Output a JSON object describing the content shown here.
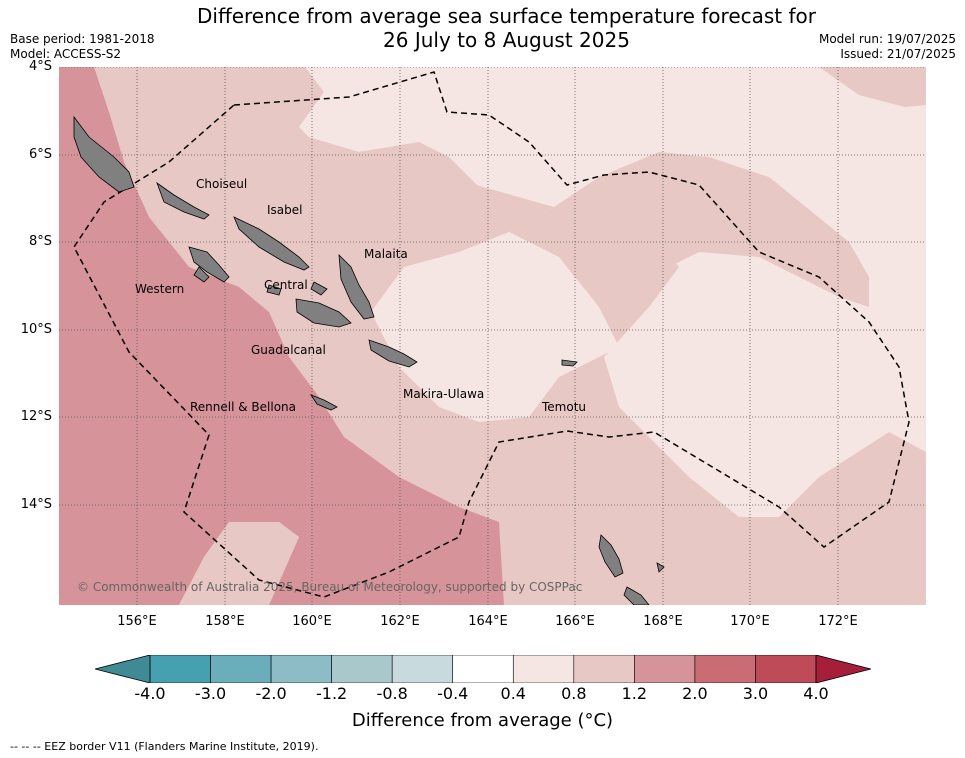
{
  "title_line1": "Difference from average sea surface temperature forecast for",
  "title_line2": "26 July to 8 August 2025",
  "meta_left": [
    "Base period: 1981-2018",
    "Model: ACCESS-S2"
  ],
  "meta_right": [
    "Model run: 19/07/2025",
    "Issued: 21/07/2025"
  ],
  "y_ticks": [
    "4°S",
    "6°S",
    "8°S",
    "10°S",
    "12°S",
    "14°S"
  ],
  "x_ticks": [
    "156°E",
    "158°E",
    "160°E",
    "162°E",
    "164°E",
    "166°E",
    "168°E",
    "170°E",
    "172°E"
  ],
  "places": [
    "Choiseul",
    "Isabel",
    "Malaita",
    "Western",
    "Central",
    "Guadalcanal",
    "Makira-Ulawa",
    "Rennell & Bellona",
    "Temotu"
  ],
  "copyright": "© Commonwealth of Australia 2025, Bureau of Meteorology, supported by COSPPac",
  "colorbar": {
    "labels": [
      "-4.0",
      "-3.0",
      "-2.0",
      "-1.2",
      "-0.8",
      "-0.4",
      "0.4",
      "0.8",
      "1.2",
      "2.0",
      "3.0",
      "4.0"
    ],
    "colors": [
      "#45a0b0",
      "#6aaebc",
      "#8cbcc5",
      "#a9c8cc",
      "#c8dadd",
      "#ffffff",
      "#f5e6e4",
      "#e8c8c4",
      "#d7939a",
      "#c96c74",
      "#be4b58"
    ],
    "under_color": "#3f8a95",
    "over_color": "#a51e3a",
    "title": "Difference from average (°C)"
  },
  "legend_footer": "--  --  -- EEZ border V11 (Flanders Marine Institute, 2019).",
  "colors": {
    "anom_0_4_0_8": "#f5e6e4",
    "anom_0_8_1_2": "#e8c8c4",
    "anom_1_2_2_0": "#d7939a",
    "land": "#808080"
  }
}
